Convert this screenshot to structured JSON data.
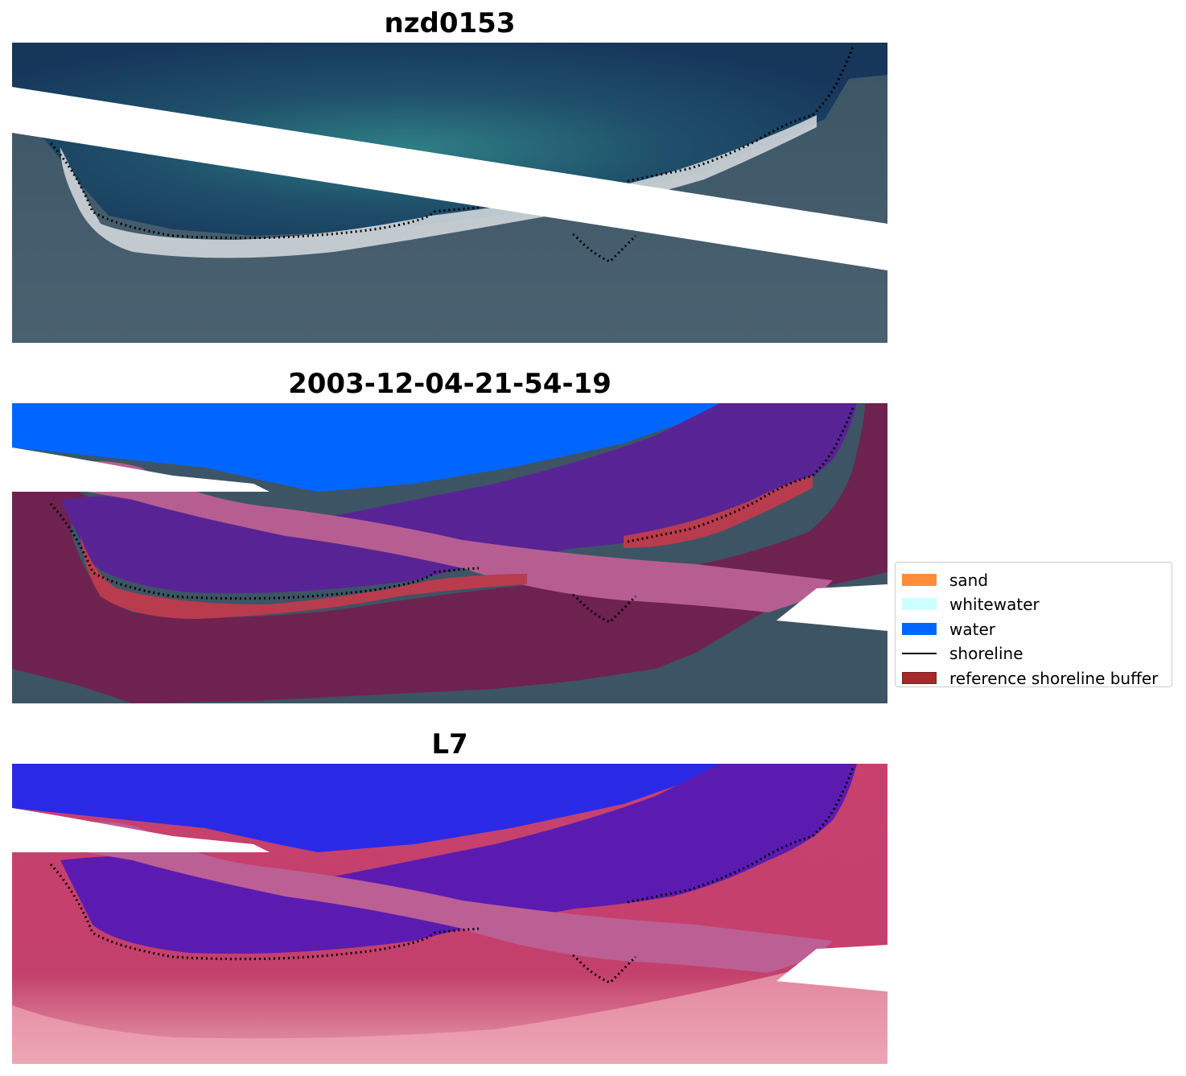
{
  "panels": [
    {
      "title": "nzd0153"
    },
    {
      "title": "2003-12-04-21-54-19"
    },
    {
      "title": "L7"
    }
  ],
  "legend": {
    "items": [
      {
        "label": "sand",
        "type": "patch",
        "color": "#ff8c3a"
      },
      {
        "label": "whitewater",
        "type": "patch",
        "color": "#ccffff"
      },
      {
        "label": "water",
        "type": "patch",
        "color": "#0066ff"
      },
      {
        "label": "shoreline",
        "type": "line",
        "color": "#000000"
      },
      {
        "label": "reference shoreline buffer",
        "type": "patch",
        "color": "#a52a2a"
      }
    ]
  }
}
